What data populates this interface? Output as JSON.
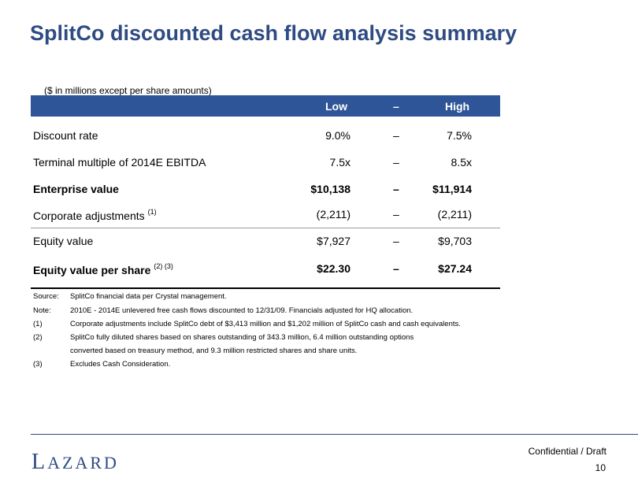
{
  "title": "SplitCo discounted cash flow analysis summary",
  "units_note": "($ in millions except per share amounts)",
  "header": {
    "low": "Low",
    "dash": "–",
    "high": "High"
  },
  "rows": [
    {
      "label": "Discount rate",
      "sup": "",
      "low": "9.0%",
      "dash": "–",
      "high": "7.5%"
    },
    {
      "label": "Terminal multiple of 2014E EBITDA",
      "sup": "",
      "low": "7.5x",
      "dash": "–",
      "high": "8.5x"
    },
    {
      "label": "Enterprise value",
      "sup": "",
      "low": "$10,138",
      "dash": "–",
      "high": "$11,914"
    },
    {
      "label": "Corporate adjustments",
      "sup": "(1)",
      "low": "(2,211)",
      "dash": "–",
      "high": "(2,211)"
    },
    {
      "label": "Equity value",
      "sup": "",
      "low": "$7,927",
      "dash": "–",
      "high": "$9,703"
    },
    {
      "label": "Equity value per share",
      "sup": "(2) (3)",
      "low": "$22.30",
      "dash": "–",
      "high": "$27.24"
    }
  ],
  "notes": [
    {
      "tag": "Source:",
      "text": "SplitCo financial data per Crystal management."
    },
    {
      "tag": "Note:",
      "text": "2010E - 2014E unlevered free cash flows discounted to 12/31/09. Financials adjusted for HQ allocation."
    },
    {
      "tag": "(1)",
      "text": "Corporate adjustments include SplitCo debt of $3,413 million and $1,202 million of SplitCo cash and cash equivalents."
    },
    {
      "tag": "(2)",
      "text": "SplitCo fully diluted shares based on shares outstanding of 343.3 million, 6.4 million outstanding options"
    },
    {
      "tag": "",
      "text": "converted based on treasury method, and 9.3 million restricted shares and share units."
    },
    {
      "tag": "(3)",
      "text": "Excludes Cash Consideration."
    }
  ],
  "footer": {
    "logo_first": "L",
    "logo_rest": "AZARD",
    "confidential": "Confidential / Draft",
    "page_number": "10"
  },
  "colors": {
    "title": "#2e4b82",
    "header_bar": "#2e5597"
  }
}
